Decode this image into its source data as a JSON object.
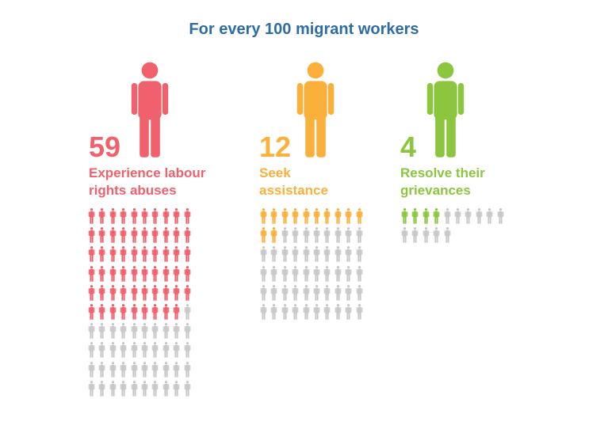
{
  "title": "For every 100 migrant workers",
  "colors": {
    "title": "#2e6da4",
    "inactive": "#c8c8c8"
  },
  "icon": "person-icon",
  "groups": [
    {
      "number": "59",
      "label_line1": "Experience labour",
      "label_line2": "rights abuses",
      "color": "#f0616d"
    },
    {
      "number": "12",
      "label_line1": "Seek",
      "label_line2": "assistance",
      "color": "#fbb03b"
    },
    {
      "number": "4",
      "label_line1": "Resolve their",
      "label_line2": "grievances",
      "color": "#8cc63f"
    }
  ],
  "chart_data": {
    "type": "pictogram",
    "title": "For every 100 migrant workers",
    "categories": [
      "Experience labour rights abuses",
      "Seek assistance",
      "Resolve their grievances"
    ],
    "values": [
      59,
      12,
      4
    ],
    "icons_total": [
      100,
      60,
      15
    ],
    "icons_per_row": 10
  }
}
